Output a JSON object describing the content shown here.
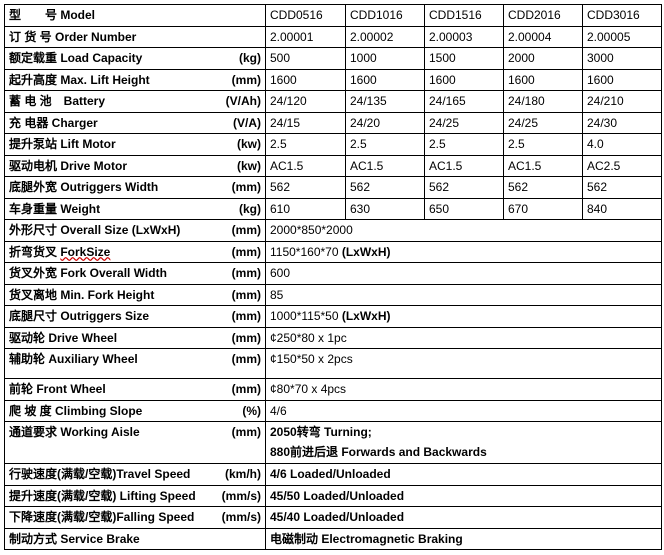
{
  "header": {
    "label": "型　　号 Model",
    "models": [
      "CDD0516",
      "CDD1016",
      "CDD1516",
      "CDD2016",
      "CDD3016"
    ]
  },
  "rows": [
    {
      "label": "订 货 号 Order Number",
      "unit": "",
      "values": [
        "2.00001",
        "2.00002",
        "2.00003",
        "2.00004",
        "2.00005"
      ]
    },
    {
      "label": "额定载重 Load Capacity",
      "unit": "(kg)",
      "values": [
        "500",
        "1000",
        "1500",
        "2000",
        "3000"
      ]
    },
    {
      "label": "起升高度 Max. Lift Height",
      "unit": "(mm)",
      "values": [
        "1600",
        "1600",
        "1600",
        "1600",
        "1600"
      ]
    },
    {
      "label": "蓄 电 池　Battery",
      "unit": "(V/Ah)",
      "values": [
        "24/120",
        "24/135",
        "24/165",
        "24/180",
        "24/210"
      ]
    },
    {
      "label": "充 电器 Charger",
      "unit": "(V/A)",
      "values": [
        "24/15",
        "24/20",
        "24/25",
        "24/25",
        "24/30"
      ]
    },
    {
      "label": "提升泵站 Lift Motor",
      "unit": "(kw)",
      "values": [
        "2.5",
        "2.5",
        "2.5",
        "2.5",
        "4.0"
      ]
    },
    {
      "label": "驱动电机 Drive Motor",
      "unit": "(kw)",
      "values": [
        "AC1.5",
        "AC1.5",
        "AC1.5",
        "AC1.5",
        "AC2.5"
      ]
    },
    {
      "label": "底腿外宽 Outriggers Width",
      "unit": "(mm)",
      "values": [
        "562",
        "562",
        "562",
        "562",
        "562"
      ]
    },
    {
      "label": "车身重量 Weight",
      "unit": "(kg)",
      "values": [
        "610",
        "630",
        "650",
        "670",
        "840"
      ]
    }
  ],
  "merged_rows": [
    {
      "label": "外形尺寸 Overall Size (LxWxH)",
      "unit": "(mm)",
      "value": "2000*850*2000"
    },
    {
      "label": "折弯货叉 ",
      "label_underlined": "ForkSize",
      "unit": "(mm)",
      "value": "1150*160*70 ",
      "value_bold": "(LxWxH)"
    },
    {
      "label": "货叉外宽 Fork Overall Width",
      "unit": "(mm)",
      "value": "600"
    },
    {
      "label": "货叉离地 Min. Fork Height",
      "unit": "(mm)",
      "value": "85"
    },
    {
      "label": "底腿尺寸 Outriggers Size",
      "unit": "(mm)",
      "value": "1000*115*50 ",
      "value_bold": "(LxWxH)"
    },
    {
      "label": "驱动轮 Drive Wheel",
      "unit": "(mm)",
      "value": "¢250*80 x 1pc"
    },
    {
      "label": "辅助轮 Auxiliary Wheel",
      "unit": "(mm)",
      "value": "¢150*50 x 2pcs"
    },
    {
      "label": "前轮 Front Wheel",
      "unit": "(mm)",
      "value": "¢80*70 x 4pcs"
    },
    {
      "label": "爬 坡 度 Climbing Slope",
      "unit": "(%)",
      "value": "4/6"
    },
    {
      "label": "通道要求 Working Aisle",
      "unit": "(mm)",
      "value": "2050转弯 Turning;",
      "value2": "880前进后退 Forwards and Backwards"
    },
    {
      "label": "行驶速度(满载/空载)Travel Speed",
      "unit": "(km/h)",
      "value": "4/6 Loaded/Unloaded"
    },
    {
      "label": "提升速度(满载/空载) Lifting Speed",
      "unit": "(mm/s)",
      "value": "45/50 Loaded/Unloaded"
    },
    {
      "label": "下降速度(满载/空载)Falling Speed",
      "unit": "(mm/s)",
      "value": "45/40 Loaded/Unloaded"
    },
    {
      "label": "制动方式 Service Brake",
      "unit": "",
      "value": "电磁制动 Electromagnetic Braking"
    }
  ]
}
